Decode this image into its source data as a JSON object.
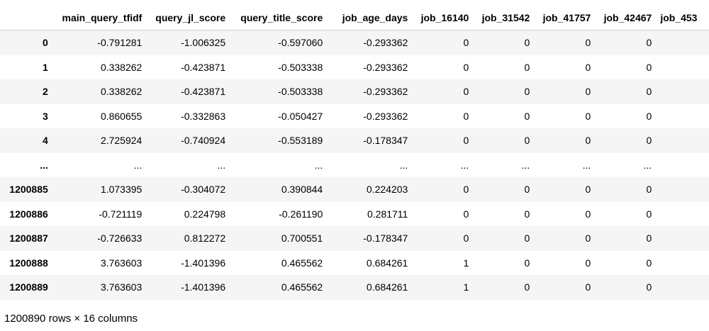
{
  "table": {
    "index_header": "",
    "columns": [
      "main_query_tfidf",
      "query_jl_score",
      "query_title_score",
      "job_age_days",
      "job_16140",
      "job_31542",
      "job_41757",
      "job_42467",
      "job_453"
    ],
    "rows": [
      {
        "index": "0",
        "cells": [
          "-0.791281",
          "-1.006325",
          "-0.597060",
          "-0.293362",
          "0",
          "0",
          "0",
          "0",
          ""
        ]
      },
      {
        "index": "1",
        "cells": [
          "0.338262",
          "-0.423871",
          "-0.503338",
          "-0.293362",
          "0",
          "0",
          "0",
          "0",
          ""
        ]
      },
      {
        "index": "2",
        "cells": [
          "0.338262",
          "-0.423871",
          "-0.503338",
          "-0.293362",
          "0",
          "0",
          "0",
          "0",
          ""
        ]
      },
      {
        "index": "3",
        "cells": [
          "0.860655",
          "-0.332863",
          "-0.050427",
          "-0.293362",
          "0",
          "0",
          "0",
          "0",
          ""
        ]
      },
      {
        "index": "4",
        "cells": [
          "2.725924",
          "-0.740924",
          "-0.553189",
          "-0.178347",
          "0",
          "0",
          "0",
          "0",
          ""
        ]
      },
      {
        "index": "...",
        "cells": [
          "...",
          "...",
          "...",
          "...",
          "...",
          "...",
          "...",
          "...",
          ""
        ]
      },
      {
        "index": "1200885",
        "cells": [
          "1.073395",
          "-0.304072",
          "0.390844",
          "0.224203",
          "0",
          "0",
          "0",
          "0",
          ""
        ]
      },
      {
        "index": "1200886",
        "cells": [
          "-0.721119",
          "0.224798",
          "-0.261190",
          "0.281711",
          "0",
          "0",
          "0",
          "0",
          ""
        ]
      },
      {
        "index": "1200887",
        "cells": [
          "-0.726633",
          "0.812272",
          "0.700551",
          "-0.178347",
          "0",
          "0",
          "0",
          "0",
          ""
        ]
      },
      {
        "index": "1200888",
        "cells": [
          "3.763603",
          "-1.401396",
          "0.465562",
          "0.684261",
          "1",
          "0",
          "0",
          "0",
          ""
        ]
      },
      {
        "index": "1200889",
        "cells": [
          "3.763603",
          "-1.401396",
          "0.465562",
          "0.684261",
          "1",
          "0",
          "0",
          "0",
          ""
        ]
      }
    ]
  },
  "footer": {
    "shape_text": "1200890 rows × 16 columns"
  }
}
